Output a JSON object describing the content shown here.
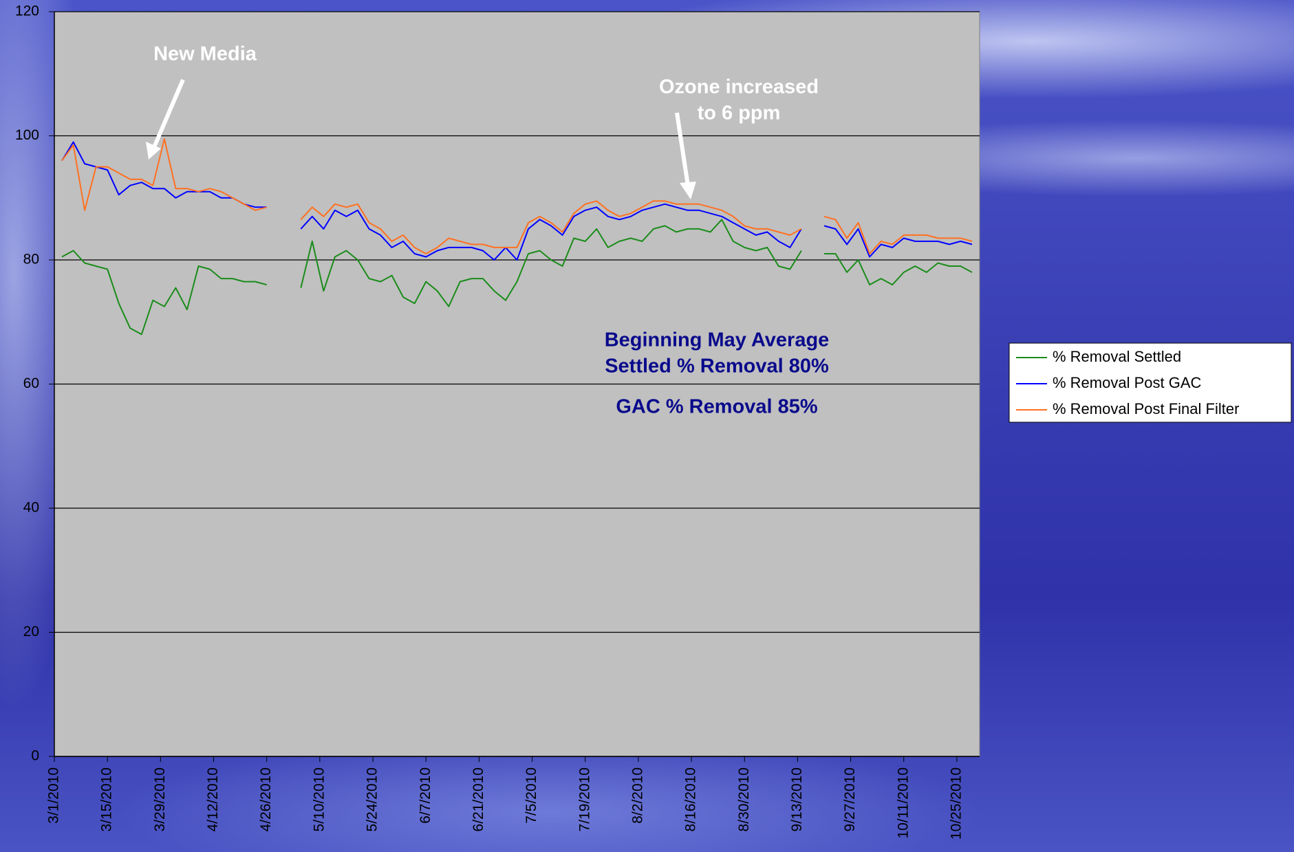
{
  "chart_data": {
    "type": "line",
    "x": [
      "3/3/2010",
      "3/6/2010",
      "3/9/2010",
      "3/12/2010",
      "3/15/2010",
      "3/18/2010",
      "3/21/2010",
      "3/24/2010",
      "3/27/2010",
      "3/30/2010",
      "4/2/2010",
      "4/5/2010",
      "4/8/2010",
      "4/11/2010",
      "4/14/2010",
      "4/17/2010",
      "4/20/2010",
      "4/23/2010",
      "4/26/2010",
      "4/29/2010",
      "5/2/2010",
      "5/5/2010",
      "5/8/2010",
      "5/11/2010",
      "5/14/2010",
      "5/17/2010",
      "5/20/2010",
      "5/23/2010",
      "5/26/2010",
      "5/29/2010",
      "6/1/2010",
      "6/4/2010",
      "6/7/2010",
      "6/10/2010",
      "6/13/2010",
      "6/16/2010",
      "6/19/2010",
      "6/22/2010",
      "6/25/2010",
      "6/28/2010",
      "7/1/2010",
      "7/4/2010",
      "7/7/2010",
      "7/10/2010",
      "7/13/2010",
      "7/16/2010",
      "7/19/2010",
      "7/22/2010",
      "7/25/2010",
      "7/28/2010",
      "7/31/2010",
      "8/3/2010",
      "8/6/2010",
      "8/9/2010",
      "8/12/2010",
      "8/15/2010",
      "8/18/2010",
      "8/21/2010",
      "8/24/2010",
      "8/27/2010",
      "8/30/2010",
      "9/2/2010",
      "9/5/2010",
      "9/8/2010",
      "9/11/2010",
      "9/14/2010",
      "9/17/2010",
      "9/20/2010",
      "9/23/2010",
      "9/26/2010",
      "9/29/2010",
      "10/2/2010",
      "10/5/2010",
      "10/8/2010",
      "10/11/2010",
      "10/14/2010",
      "10/17/2010",
      "10/20/2010",
      "10/23/2010",
      "10/26/2010",
      "10/29/2010"
    ],
    "series": [
      {
        "name": "% Removal Settled",
        "color": "#1a8c1a",
        "values": [
          80.5,
          81.5,
          79.5,
          79,
          78.5,
          73,
          69,
          68,
          73.5,
          72.5,
          75.5,
          72,
          79,
          78.5,
          77,
          77,
          76.5,
          76.5,
          76,
          null,
          null,
          75.5,
          83,
          75,
          80.5,
          81.5,
          80,
          77,
          76.5,
          77.5,
          74,
          73,
          76.5,
          75,
          72.5,
          76.5,
          77,
          77,
          75,
          73.5,
          76.5,
          81,
          81.5,
          80,
          79,
          83.5,
          83,
          85,
          82,
          83,
          83.5,
          83,
          85,
          85.5,
          84.5,
          85,
          85,
          84.5,
          86.5,
          83,
          82,
          81.5,
          82,
          79,
          78.5,
          81.5,
          null,
          81,
          81,
          78,
          80,
          76,
          77,
          76,
          78,
          79,
          78,
          79.5,
          79,
          79,
          78
        ]
      },
      {
        "name": "% Removal Post GAC",
        "color": "#0000ff",
        "values": [
          96,
          99,
          95.5,
          95,
          94.5,
          90.5,
          92,
          92.5,
          91.5,
          91.5,
          90,
          91,
          91,
          91,
          90,
          90,
          89,
          88.5,
          88.5,
          null,
          null,
          85,
          87,
          85,
          88,
          87,
          88,
          85,
          84,
          82,
          83,
          81,
          80.5,
          81.5,
          82,
          82,
          82,
          81.5,
          80,
          82,
          80,
          85,
          86.5,
          85.5,
          84,
          87,
          88,
          88.5,
          87,
          86.5,
          87,
          88,
          88.5,
          89,
          88.5,
          88,
          88,
          87.5,
          87,
          86,
          85,
          84,
          84.5,
          83,
          82,
          85,
          null,
          85.5,
          85,
          82.5,
          85,
          80.5,
          82.5,
          82,
          83.5,
          83,
          83,
          83,
          82.5,
          83,
          82.5
        ]
      },
      {
        "name": "% Removal Post Final Filter",
        "color": "#ff7020",
        "values": [
          96,
          98.5,
          88,
          95,
          95,
          94,
          93,
          93,
          92,
          99.5,
          91.5,
          91.5,
          91,
          91.5,
          91,
          90,
          89,
          88,
          88.5,
          null,
          null,
          86.5,
          88.5,
          87,
          89,
          88.5,
          89,
          86,
          85,
          83,
          84,
          82,
          81,
          82,
          83.5,
          83,
          82.5,
          82.5,
          82,
          82,
          82,
          86,
          87,
          86,
          84.5,
          87.5,
          89,
          89.5,
          88,
          87,
          87.5,
          88.5,
          89.5,
          89.5,
          89,
          89,
          89,
          88.5,
          88,
          87,
          85.5,
          85,
          85,
          84.5,
          84,
          85,
          null,
          87,
          86.5,
          83.5,
          86,
          81,
          83,
          82.5,
          84,
          84,
          84,
          83.5,
          83.5,
          83.5,
          83
        ]
      }
    ],
    "xlim": [
      "3/1/2010",
      "10/31/2010"
    ],
    "xticks": [
      "3/1/2010",
      "3/15/2010",
      "3/29/2010",
      "4/12/2010",
      "4/26/2010",
      "5/10/2010",
      "5/24/2010",
      "6/7/2010",
      "6/21/2010",
      "7/5/2010",
      "7/19/2010",
      "8/2/2010",
      "8/16/2010",
      "8/30/2010",
      "9/13/2010",
      "9/27/2010",
      "10/11/2010",
      "10/25/2010"
    ],
    "ylim": [
      0,
      120
    ],
    "yticks": [
      0,
      20,
      40,
      60,
      80,
      100,
      120
    ],
    "grid": true,
    "legend": "right",
    "annotations": {
      "new_media": "New Media",
      "ozone": [
        "Ozone increased",
        "to 6 ppm"
      ],
      "settled_avg": [
        "Beginning May Average",
        "Settled % Removal 80%"
      ],
      "gac_avg": "GAC % Removal 85%"
    }
  }
}
